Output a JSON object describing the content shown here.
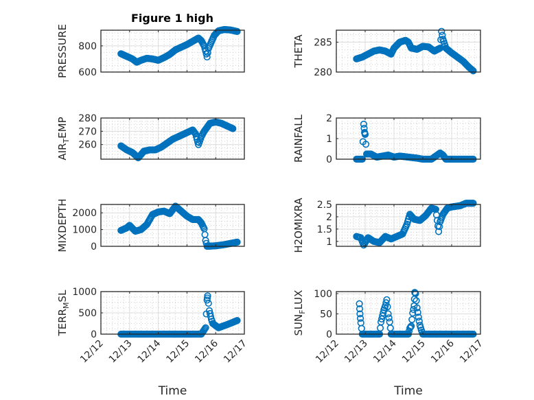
{
  "chart_data": {
    "type": "scatter",
    "title": "Figure 1 high",
    "layout": "4x2 subplots",
    "marker": "open circle",
    "color": "#0072BD",
    "grid": true,
    "minor_grid": true,
    "xlabel": "Time",
    "x_ticks": [
      "12/12",
      "12/13",
      "12/14",
      "12/15",
      "12/16",
      "12/17"
    ],
    "x_range_days": [
      0,
      5
    ],
    "subplots": [
      {
        "ylabel": "PRESSURE",
        "ylim": [
          600,
          920
        ],
        "yticks": [
          600,
          800
        ],
        "ytick_labels": [
          "600",
          "800"
        ],
        "series": [
          [
            0.7,
            740
          ],
          [
            0.9,
            720
          ],
          [
            1.1,
            700
          ],
          [
            1.25,
            675
          ],
          [
            1.4,
            690
          ],
          [
            1.6,
            705
          ],
          [
            1.8,
            700
          ],
          [
            2.0,
            690
          ],
          [
            2.2,
            710
          ],
          [
            2.4,
            735
          ],
          [
            2.6,
            770
          ],
          [
            2.8,
            790
          ],
          [
            3.0,
            810
          ],
          [
            3.2,
            835
          ],
          [
            3.4,
            860
          ],
          [
            3.5,
            840
          ],
          [
            3.6,
            800
          ],
          [
            3.65,
            760
          ],
          [
            3.7,
            715
          ],
          [
            3.75,
            780
          ],
          [
            3.85,
            830
          ],
          [
            3.95,
            880
          ],
          [
            4.1,
            915
          ],
          [
            4.3,
            925
          ],
          [
            4.5,
            922
          ],
          [
            4.75,
            910
          ]
        ]
      },
      {
        "ylabel": "THETA",
        "ylim": [
          280,
          287
        ],
        "yticks": [
          280,
          285
        ],
        "ytick_labels": [
          "280",
          "285"
        ],
        "series": [
          [
            0.7,
            282.2
          ],
          [
            0.9,
            282.5
          ],
          [
            1.1,
            283.0
          ],
          [
            1.3,
            283.5
          ],
          [
            1.5,
            283.7
          ],
          [
            1.7,
            283.5
          ],
          [
            1.9,
            283.0
          ],
          [
            2.0,
            284.0
          ],
          [
            2.2,
            285.0
          ],
          [
            2.4,
            285.3
          ],
          [
            2.5,
            285.0
          ],
          [
            2.6,
            284.0
          ],
          [
            2.8,
            283.8
          ],
          [
            3.0,
            284.3
          ],
          [
            3.2,
            284.2
          ],
          [
            3.4,
            283.5
          ],
          [
            3.6,
            284.0
          ],
          [
            3.65,
            286.8
          ],
          [
            3.7,
            285.5
          ],
          [
            3.8,
            284.0
          ],
          [
            4.0,
            283.2
          ],
          [
            4.2,
            282.5
          ],
          [
            4.4,
            281.8
          ],
          [
            4.6,
            280.8
          ],
          [
            4.75,
            280.2
          ]
        ]
      },
      {
        "ylabel": "AIR_TEMP",
        "ylabel_main": "AIR",
        "ylabel_sub": "T",
        "ylabel_rest": "EMP",
        "ylim": [
          249,
          280
        ],
        "yticks": [
          260,
          270,
          280
        ],
        "ytick_labels": [
          "260",
          "270",
          "280"
        ],
        "series": [
          [
            0.7,
            259
          ],
          [
            0.9,
            256
          ],
          [
            1.1,
            254
          ],
          [
            1.3,
            250
          ],
          [
            1.5,
            255
          ],
          [
            1.7,
            256
          ],
          [
            1.9,
            256
          ],
          [
            2.1,
            258
          ],
          [
            2.3,
            261
          ],
          [
            2.5,
            264
          ],
          [
            2.7,
            266
          ],
          [
            2.9,
            268
          ],
          [
            3.1,
            270
          ],
          [
            3.2,
            271
          ],
          [
            3.3,
            268
          ],
          [
            3.35,
            264
          ],
          [
            3.4,
            260
          ],
          [
            3.5,
            266
          ],
          [
            3.6,
            270
          ],
          [
            3.8,
            276
          ],
          [
            4.0,
            277
          ],
          [
            4.2,
            276
          ],
          [
            4.4,
            274
          ],
          [
            4.6,
            272
          ]
        ]
      },
      {
        "ylabel": "RAINFALL",
        "ylim": [
          0,
          2
        ],
        "yticks": [
          0,
          1,
          2
        ],
        "ytick_labels": [
          "0",
          "1",
          "2"
        ],
        "series": [
          [
            0.7,
            0
          ],
          [
            0.9,
            0
          ],
          [
            0.95,
            1.7
          ],
          [
            0.98,
            1.3
          ],
          [
            1.0,
            1.2
          ],
          [
            1.05,
            0.25
          ],
          [
            1.2,
            0.25
          ],
          [
            1.4,
            0.1
          ],
          [
            1.6,
            0.15
          ],
          [
            1.8,
            0.2
          ],
          [
            2.0,
            0.1
          ],
          [
            2.2,
            0.15
          ],
          [
            2.5,
            0.1
          ],
          [
            2.8,
            0.05
          ],
          [
            3.0,
            0.0
          ],
          [
            3.3,
            0.0
          ],
          [
            3.6,
            0.3
          ],
          [
            3.7,
            0.2
          ],
          [
            3.8,
            0
          ],
          [
            4.2,
            0
          ],
          [
            4.75,
            0
          ]
        ]
      },
      {
        "ylabel": "MIXDEPTH",
        "ylim": [
          0,
          2500
        ],
        "yticks": [
          0,
          1000,
          2000
        ],
        "ytick_labels": [
          "0",
          "1000",
          "2000"
        ],
        "series": [
          [
            0.7,
            950
          ],
          [
            0.9,
            1100
          ],
          [
            1.0,
            1250
          ],
          [
            1.2,
            900
          ],
          [
            1.4,
            1000
          ],
          [
            1.6,
            1300
          ],
          [
            1.8,
            1900
          ],
          [
            2.0,
            2050
          ],
          [
            2.2,
            2100
          ],
          [
            2.4,
            1950
          ],
          [
            2.6,
            2400
          ],
          [
            2.8,
            2100
          ],
          [
            3.0,
            1800
          ],
          [
            3.2,
            1600
          ],
          [
            3.4,
            1600
          ],
          [
            3.5,
            1400
          ],
          [
            3.6,
            1050
          ],
          [
            3.65,
            350
          ],
          [
            3.7,
            0
          ],
          [
            4.0,
            30
          ],
          [
            4.3,
            100
          ],
          [
            4.6,
            200
          ],
          [
            4.75,
            250
          ]
        ]
      },
      {
        "ylabel": "H2OMIXRA",
        "ylim": [
          0.8,
          2.5
        ],
        "yticks": [
          1,
          1.5,
          2,
          2.5
        ],
        "ytick_labels": [
          "1",
          "1.5",
          "2",
          "2.5"
        ],
        "series": [
          [
            0.7,
            1.2
          ],
          [
            0.85,
            1.15
          ],
          [
            0.95,
            0.85
          ],
          [
            1.1,
            1.15
          ],
          [
            1.3,
            1.0
          ],
          [
            1.5,
            0.95
          ],
          [
            1.7,
            1.2
          ],
          [
            1.9,
            1.1
          ],
          [
            2.1,
            1.2
          ],
          [
            2.3,
            1.3
          ],
          [
            2.45,
            1.7
          ],
          [
            2.55,
            2.1
          ],
          [
            2.7,
            1.9
          ],
          [
            2.9,
            1.85
          ],
          [
            3.1,
            2.05
          ],
          [
            3.3,
            2.35
          ],
          [
            3.45,
            2.3
          ],
          [
            3.55,
            1.4
          ],
          [
            3.6,
            1.8
          ],
          [
            3.7,
            2.1
          ],
          [
            3.85,
            2.35
          ],
          [
            4.0,
            2.4
          ],
          [
            4.3,
            2.45
          ],
          [
            4.5,
            2.55
          ],
          [
            4.75,
            2.55
          ]
        ]
      },
      {
        "ylabel": "TERR_MSL",
        "ylabel_main": "TERR",
        "ylabel_sub": "M",
        "ylabel_rest": "SL",
        "ylim": [
          0,
          1000
        ],
        "yticks": [
          0,
          500,
          1000
        ],
        "ytick_labels": [
          "0",
          "500",
          "1000"
        ],
        "series": [
          [
            0.7,
            0
          ],
          [
            1.5,
            0
          ],
          [
            2.5,
            0
          ],
          [
            3.5,
            0
          ],
          [
            3.65,
            150
          ],
          [
            3.7,
            800
          ],
          [
            3.72,
            900
          ],
          [
            3.78,
            550
          ],
          [
            3.85,
            350
          ],
          [
            3.9,
            250
          ],
          [
            4.0,
            200
          ],
          [
            4.1,
            150
          ],
          [
            4.3,
            200
          ],
          [
            4.5,
            250
          ],
          [
            4.75,
            320
          ]
        ]
      },
      {
        "ylabel": "SUN_FLUX",
        "ylabel_main": "SUN",
        "ylabel_sub": "F",
        "ylabel_rest": "LUX",
        "ylim": [
          0,
          105
        ],
        "yticks": [
          0,
          50,
          100
        ],
        "ytick_labels": [
          "0",
          "50",
          "100"
        ],
        "series": [
          [
            0.8,
            75
          ],
          [
            0.82,
            50
          ],
          [
            0.85,
            28
          ],
          [
            0.9,
            0
          ],
          [
            1.5,
            0
          ],
          [
            1.55,
            30
          ],
          [
            1.65,
            60
          ],
          [
            1.7,
            70
          ],
          [
            1.75,
            85
          ],
          [
            1.8,
            50
          ],
          [
            1.85,
            30
          ],
          [
            1.9,
            0
          ],
          [
            2.5,
            0
          ],
          [
            2.55,
            15
          ],
          [
            2.6,
            20
          ],
          [
            2.65,
            52
          ],
          [
            2.7,
            70
          ],
          [
            2.72,
            103
          ],
          [
            2.75,
            100
          ],
          [
            2.8,
            65
          ],
          [
            2.85,
            42
          ],
          [
            2.9,
            22
          ],
          [
            2.95,
            10
          ],
          [
            3.0,
            0
          ],
          [
            4.75,
            0
          ]
        ]
      }
    ]
  }
}
